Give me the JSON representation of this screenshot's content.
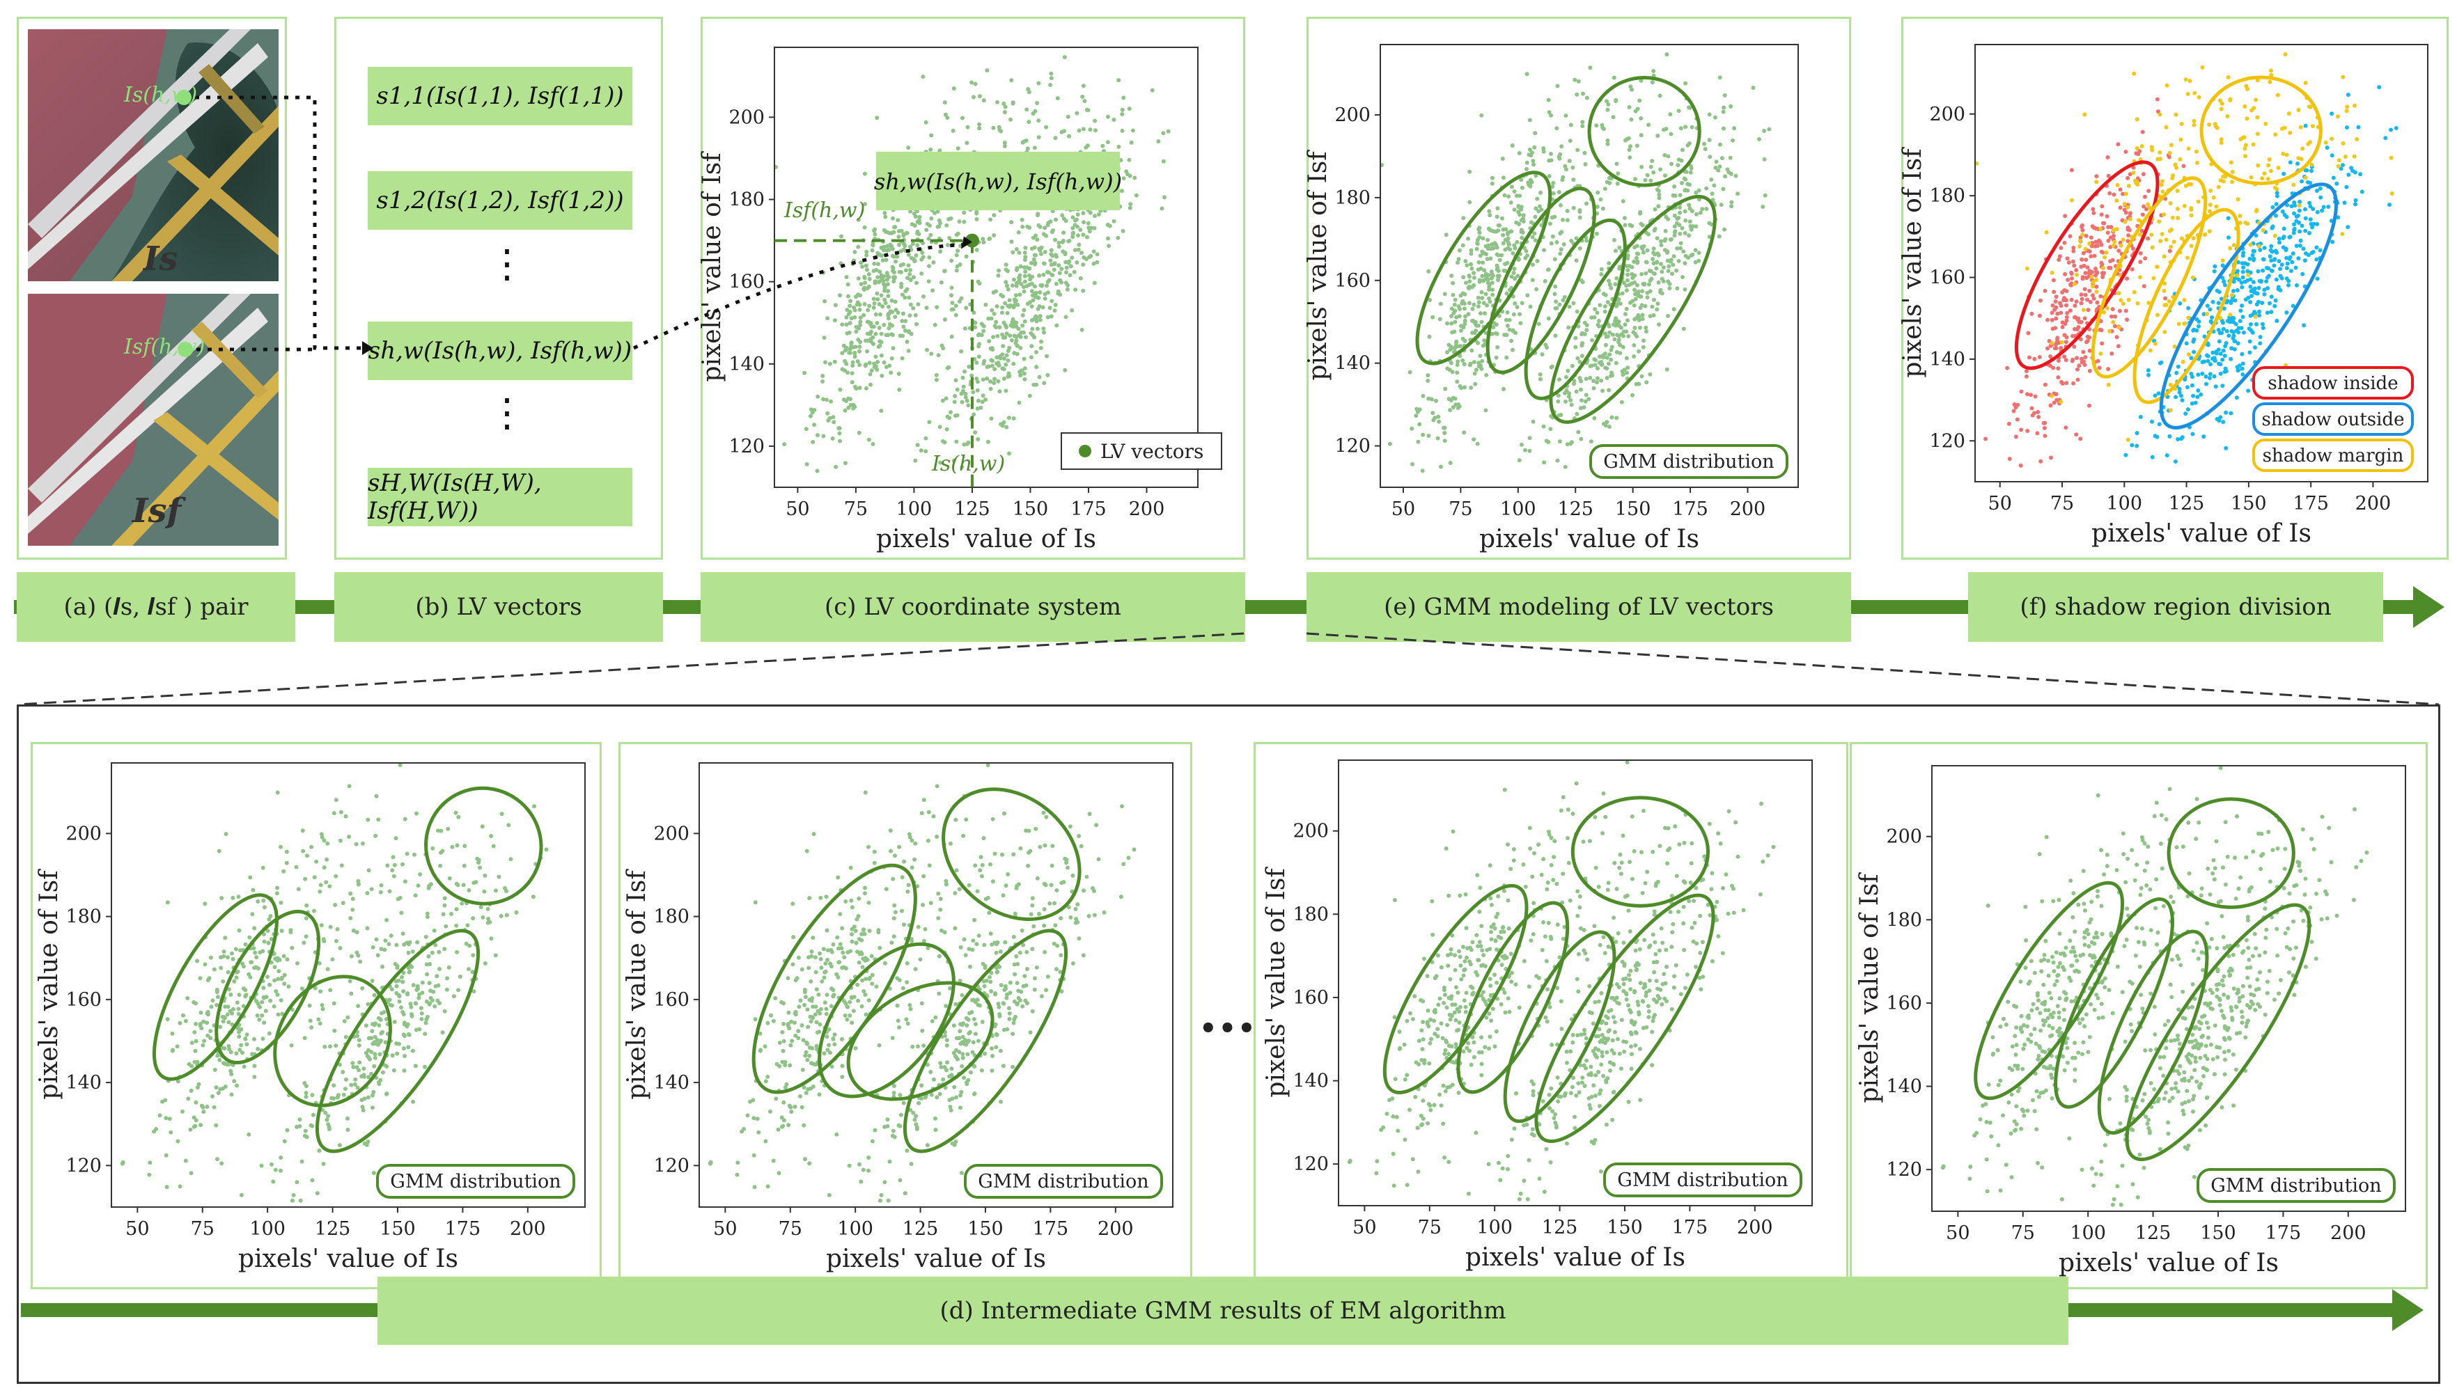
{
  "top_labels": {
    "a": "(a) (𝑰s, 𝑰sf ) pair",
    "b": "(b) LV vectors",
    "c": "(c) LV coordinate system",
    "e": "(e) GMM modeling of LV vectors",
    "f": "(f) shadow region division"
  },
  "bottom_label": "(d) Intermediate GMM results of EM algorithm",
  "image_labels": {
    "top": "𝑰s",
    "bottom": "𝑰sf",
    "point_top": "Is(h,w)",
    "point_bottom": "Isf(h,w)"
  },
  "lv_vectors": [
    "s1,1(Is(1,1), Isf(1,1))",
    "s1,2(Is(1,2), Isf(1,2))",
    "sh,w(Is(h,w), Isf(h,w))",
    "sH,W(Is(H,W), Isf(H,W))"
  ],
  "vdots": "⋮",
  "hdots": "•••",
  "panel_c": {
    "callout": "sh,w(Is(h,w), Isf(h,w))",
    "y_marker": "Isf(h,w)",
    "x_marker": "Is(h,w)",
    "legend": "LV vectors"
  },
  "legend_gmm": "GMM distribution",
  "region_legend": [
    "shadow inside",
    "shadow outside",
    "shadow margin"
  ],
  "colors": {
    "panel_border": "#b4e098",
    "label_fill": "#b3e291",
    "arrow": "#4e8c2a",
    "points": "#8fc287",
    "ellipse": "#4e8c2a",
    "inside": "#e8181e",
    "outside": "#1a8fe0",
    "margin": "#f2c20a",
    "inside_points": "#ee7070",
    "outside_points": "#14b8ee",
    "margin_points": "#f0c818"
  },
  "chart_data": {
    "type": "scatter",
    "xlabel": "pixels' value of Is",
    "ylabel": "pixels' value of Isf",
    "xticks": [
      50,
      75,
      100,
      125,
      150,
      175,
      200
    ],
    "yticks": [
      120,
      140,
      160,
      180,
      200
    ],
    "xlim": [
      40,
      222
    ],
    "ylim": [
      110,
      217
    ],
    "clusters": [
      {
        "cx": 85,
        "cy": 155,
        "sx": 14,
        "sy": 17,
        "rho": 0.75,
        "n": 800
      },
      {
        "cx": 150,
        "cy": 155,
        "sx": 20,
        "sy": 18,
        "rho": 0.85,
        "n": 1000
      },
      {
        "cx": 115,
        "cy": 170,
        "sx": 22,
        "sy": 18,
        "rho": 0.3,
        "n": 450
      },
      {
        "cx": 155,
        "cy": 195,
        "sx": 22,
        "sy": 10,
        "rho": 0.1,
        "n": 200
      }
    ],
    "gmm_final": [
      {
        "cx": 85,
        "cy": 163,
        "rx": 48,
        "ry": 9,
        "rot": 58
      },
      {
        "cx": 110,
        "cy": 160,
        "rx": 44,
        "ry": 8,
        "rot": 64
      },
      {
        "cx": 125,
        "cy": 153,
        "rx": 42,
        "ry": 8,
        "rot": 66
      },
      {
        "cx": 150,
        "cy": 153,
        "rx": 58,
        "ry": 10,
        "rot": 56
      },
      {
        "cx": 155,
        "cy": 196,
        "rx": 24,
        "ry": 13,
        "rot": 0
      }
    ],
    "gmm_iter1": [
      {
        "cx": 80,
        "cy": 163,
        "rx": 40,
        "ry": 9,
        "rot": 60
      },
      {
        "cx": 100,
        "cy": 163,
        "rx": 32,
        "ry": 9,
        "rot": 62
      },
      {
        "cx": 125,
        "cy": 150,
        "rx": 26,
        "ry": 13,
        "rot": 60
      },
      {
        "cx": 150,
        "cy": 150,
        "rx": 50,
        "ry": 10,
        "rot": 56
      },
      {
        "cx": 183,
        "cy": 197,
        "rx": 22,
        "ry": 14,
        "rot": 40
      }
    ],
    "gmm_iter2": [
      {
        "cx": 92,
        "cy": 165,
        "rx": 50,
        "ry": 12,
        "rot": 58
      },
      {
        "cx": 112,
        "cy": 155,
        "rx": 34,
        "ry": 12,
        "rot": 52
      },
      {
        "cx": 125,
        "cy": 150,
        "rx": 30,
        "ry": 12,
        "rot": 30
      },
      {
        "cx": 150,
        "cy": 150,
        "rx": 50,
        "ry": 10,
        "rot": 56
      },
      {
        "cx": 160,
        "cy": 195,
        "rx": 22,
        "ry": 18,
        "rot": 50
      }
    ],
    "gmm_iter3": [
      {
        "cx": 85,
        "cy": 162,
        "rx": 46,
        "ry": 9,
        "rot": 58
      },
      {
        "cx": 107,
        "cy": 160,
        "rx": 40,
        "ry": 8,
        "rot": 64
      },
      {
        "cx": 125,
        "cy": 153,
        "rx": 40,
        "ry": 8,
        "rot": 64
      },
      {
        "cx": 150,
        "cy": 155,
        "rx": 56,
        "ry": 10,
        "rot": 56
      },
      {
        "cx": 156,
        "cy": 195,
        "rx": 26,
        "ry": 13,
        "rot": 0
      }
    ],
    "marker_point": {
      "x": 125,
      "y": 170
    }
  }
}
